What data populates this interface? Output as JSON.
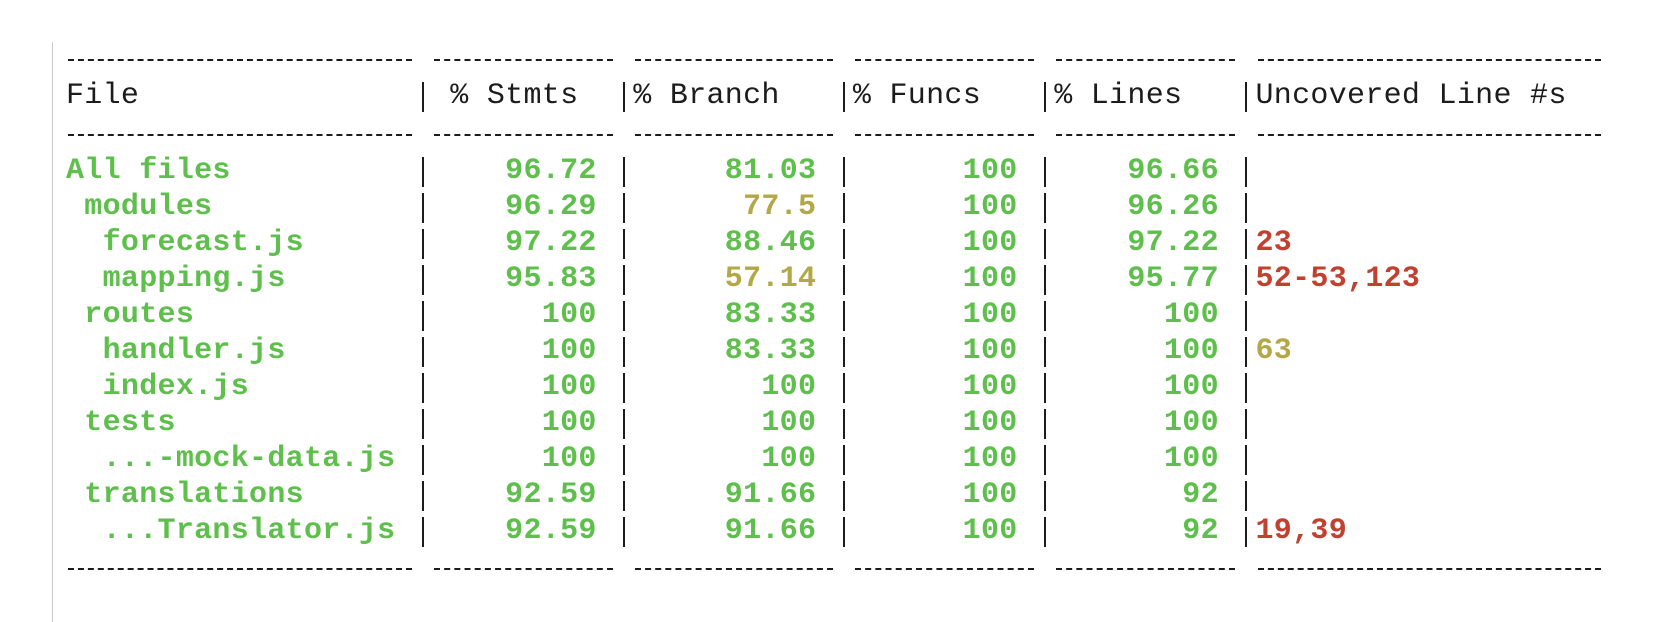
{
  "table": {
    "header": [
      "File",
      "% Stmts",
      "% Branch",
      "% Funcs",
      "% Lines",
      "Uncovered Line #s"
    ],
    "rows": [
      {
        "cells": [
          "All files",
          "96.72",
          "81.03",
          "100",
          "96.66"
        ],
        "colors": [
          "#5fbf4c",
          "#5fbf4c",
          "#5fbf4c",
          "#5fbf4c",
          "#5fbf4c"
        ]
      },
      {
        "cells": [
          " modules",
          "96.29",
          "77.5",
          "100",
          "96.26"
        ],
        "colors": [
          "#5fbf4c",
          "#5fbf4c",
          "#b3a847",
          "#5fbf4c",
          "#5fbf4c"
        ]
      },
      {
        "cells": [
          "  forecast.js",
          "97.22",
          "88.46",
          "100",
          "97.22",
          "23"
        ],
        "colors": [
          "#5fbf4c",
          "#5fbf4c",
          "#5fbf4c",
          "#5fbf4c",
          "#5fbf4c",
          "#c0412f"
        ]
      },
      {
        "cells": [
          "  mapping.js",
          "95.83",
          "57.14",
          "100",
          "95.77",
          "52-53,123"
        ],
        "colors": [
          "#5fbf4c",
          "#5fbf4c",
          "#b3a847",
          "#5fbf4c",
          "#5fbf4c",
          "#c0412f"
        ]
      },
      {
        "cells": [
          " routes",
          "100",
          "83.33",
          "100",
          "100"
        ],
        "colors": [
          "#5fbf4c",
          "#5fbf4c",
          "#5fbf4c",
          "#5fbf4c",
          "#5fbf4c"
        ]
      },
      {
        "cells": [
          "  handler.js",
          "100",
          "83.33",
          "100",
          "100",
          "63"
        ],
        "colors": [
          "#5fbf4c",
          "#5fbf4c",
          "#5fbf4c",
          "#5fbf4c",
          "#5fbf4c",
          "#b3a847"
        ]
      },
      {
        "cells": [
          "  index.js",
          "100",
          "100",
          "100",
          "100"
        ],
        "colors": [
          "#5fbf4c",
          "#5fbf4c",
          "#5fbf4c",
          "#5fbf4c",
          "#5fbf4c"
        ]
      },
      {
        "cells": [
          " tests",
          "100",
          "100",
          "100",
          "100"
        ],
        "colors": [
          "#5fbf4c",
          "#5fbf4c",
          "#5fbf4c",
          "#5fbf4c",
          "#5fbf4c"
        ]
      },
      {
        "cells": [
          "  ...-mock-data.js",
          "100",
          "100",
          "100",
          "100"
        ],
        "colors": [
          "#5fbf4c",
          "#5fbf4c",
          "#5fbf4c",
          "#5fbf4c",
          "#5fbf4c"
        ]
      },
      {
        "cells": [
          " translations",
          "92.59",
          "91.66",
          "100",
          "92"
        ],
        "colors": [
          "#5fbf4c",
          "#5fbf4c",
          "#5fbf4c",
          "#5fbf4c",
          "#5fbf4c"
        ]
      },
      {
        "cells": [
          "  ...Translator.js",
          "92.59",
          "91.66",
          "100",
          "92",
          "19,39"
        ],
        "colors": [
          "#5fbf4c",
          "#5fbf4c",
          "#5fbf4c",
          "#5fbf4c",
          "#5fbf4c",
          "#c0412f"
        ]
      }
    ]
  }
}
